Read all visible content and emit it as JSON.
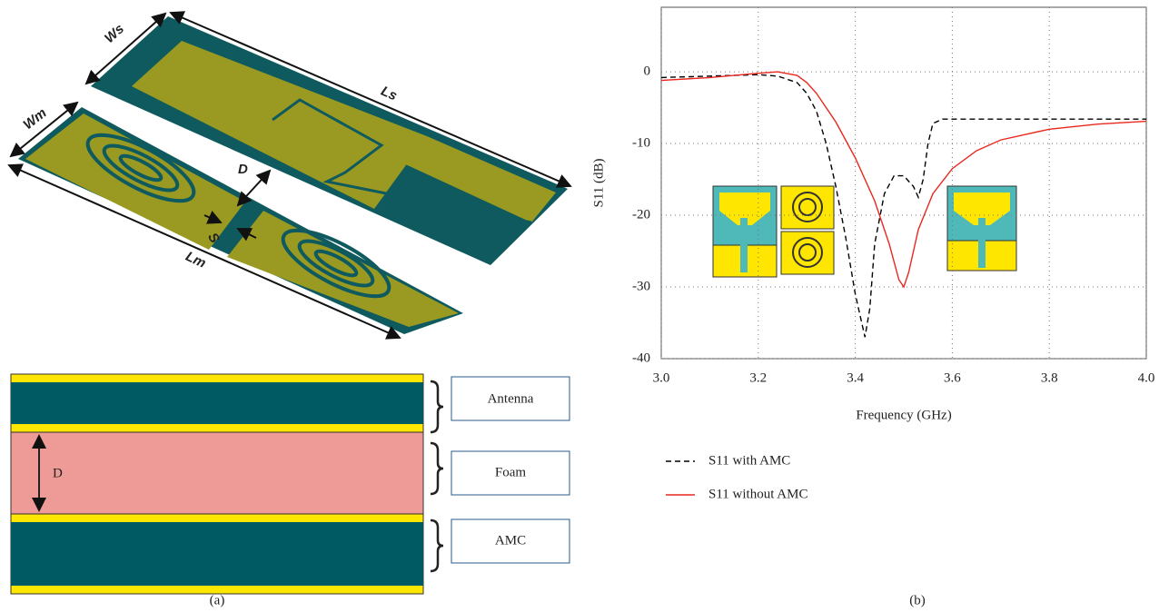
{
  "diagram": {
    "top_view": {
      "ws": "Ws",
      "ls": "Ls",
      "wm": "Wm",
      "d": "D",
      "s": "S",
      "lm": "Lm"
    },
    "stack": {
      "layers": [
        "Antenna",
        "Foam",
        "AMC"
      ],
      "d": "D"
    },
    "caption": "(a)"
  },
  "chart_data": {
    "type": "line",
    "caption": "(b)",
    "x_label": "Frequency (GHz)",
    "y_label": "S11 (dB)",
    "xlim": [
      3.0,
      4.0
    ],
    "ylim": [
      -40,
      9
    ],
    "xticks": [
      {
        "value": 3,
        "label": "3.0"
      },
      3.2,
      3.4,
      3.6,
      3.8,
      {
        "value": 4,
        "label": "4.0"
      }
    ],
    "yticks": [
      0,
      -10,
      -20,
      -30,
      -40
    ],
    "grid": true,
    "series": [
      {
        "name": "S11 with AMC",
        "color": "#000000",
        "style": "dashed",
        "x": [
          3.0,
          3.1,
          3.2,
          3.24,
          3.28,
          3.3,
          3.32,
          3.34,
          3.36,
          3.38,
          3.4,
          3.42,
          3.43,
          3.44,
          3.46,
          3.48,
          3.5,
          3.52,
          3.53,
          3.54,
          3.55,
          3.56,
          3.58,
          3.7,
          3.8,
          4.0
        ],
        "values": [
          -0.8,
          -0.6,
          -0.4,
          -0.6,
          -1.5,
          -3,
          -5.5,
          -10,
          -16,
          -23,
          -31,
          -37,
          -33,
          -24,
          -17,
          -14.5,
          -14.5,
          -16,
          -17.5,
          -15,
          -10,
          -7.2,
          -6.6,
          -6.6,
          -6.6,
          -6.6
        ]
      },
      {
        "name": "S11 without AMC",
        "color": "#e8281e",
        "style": "solid",
        "x": [
          3.0,
          3.1,
          3.2,
          3.24,
          3.28,
          3.3,
          3.32,
          3.36,
          3.4,
          3.44,
          3.47,
          3.49,
          3.5,
          3.51,
          3.53,
          3.56,
          3.6,
          3.65,
          3.7,
          3.8,
          3.9,
          4.0
        ],
        "values": [
          -1.2,
          -0.8,
          -0.2,
          0,
          -0.5,
          -1.5,
          -3,
          -7,
          -12,
          -18,
          -24,
          -29,
          -30,
          -28,
          -22,
          -17,
          -13.5,
          -11,
          -9.5,
          -8,
          -7.3,
          -6.9
        ]
      }
    ]
  }
}
